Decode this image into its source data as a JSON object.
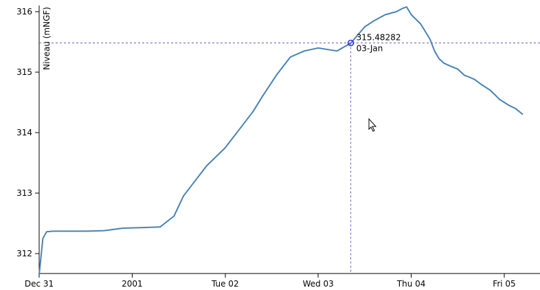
{
  "chart_data": {
    "type": "line",
    "title": "",
    "xlabel": "",
    "ylabel": "Niveau (mNGF)",
    "x_tick_labels": [
      "Dec 31",
      "2001",
      "Tue 02",
      "Wed 03",
      "Thu 04",
      "Fri 05"
    ],
    "y_tick_labels": [
      "312",
      "313",
      "314",
      "315",
      "316"
    ],
    "x_range_days": [
      0,
      5.2
    ],
    "ylim": [
      311.65,
      316.1
    ],
    "grid": false,
    "series": [
      {
        "color": "#4682b4",
        "x_days": [
          0.0,
          0.04,
          0.08,
          0.15,
          0.3,
          0.5,
          0.7,
          0.9,
          1.1,
          1.3,
          1.45,
          1.55,
          1.65,
          1.8,
          2.0,
          2.2,
          2.3,
          2.4,
          2.55,
          2.7,
          2.85,
          3.0,
          3.2,
          3.35,
          3.5,
          3.6,
          3.72,
          3.84,
          3.9,
          3.95,
          4.0,
          4.1,
          4.2,
          4.25,
          4.3,
          4.35,
          4.42,
          4.5,
          4.57,
          4.62,
          4.68,
          4.75,
          4.85,
          4.95,
          5.05,
          5.12,
          5.2
        ],
        "values": [
          311.65,
          312.25,
          312.36,
          312.37,
          312.37,
          312.37,
          312.38,
          312.42,
          312.43,
          312.44,
          312.62,
          312.95,
          313.15,
          313.45,
          313.75,
          314.15,
          314.35,
          314.6,
          314.95,
          315.25,
          315.35,
          315.4,
          315.35,
          315.48,
          315.75,
          315.85,
          315.95,
          316.0,
          316.05,
          316.08,
          315.95,
          315.8,
          315.55,
          315.35,
          315.22,
          315.15,
          315.1,
          315.05,
          314.95,
          314.92,
          314.88,
          314.8,
          314.7,
          314.55,
          314.45,
          314.4,
          314.3
        ]
      }
    ],
    "focus_point": {
      "value_label": "315.48282",
      "date_label": "03-Jan",
      "x_days": 3.35,
      "value": 315.48282
    }
  },
  "colors": {
    "line": "#4682b4",
    "axis": "#000000",
    "crosshair": "#6a5acd",
    "marker": "#3333cc"
  }
}
